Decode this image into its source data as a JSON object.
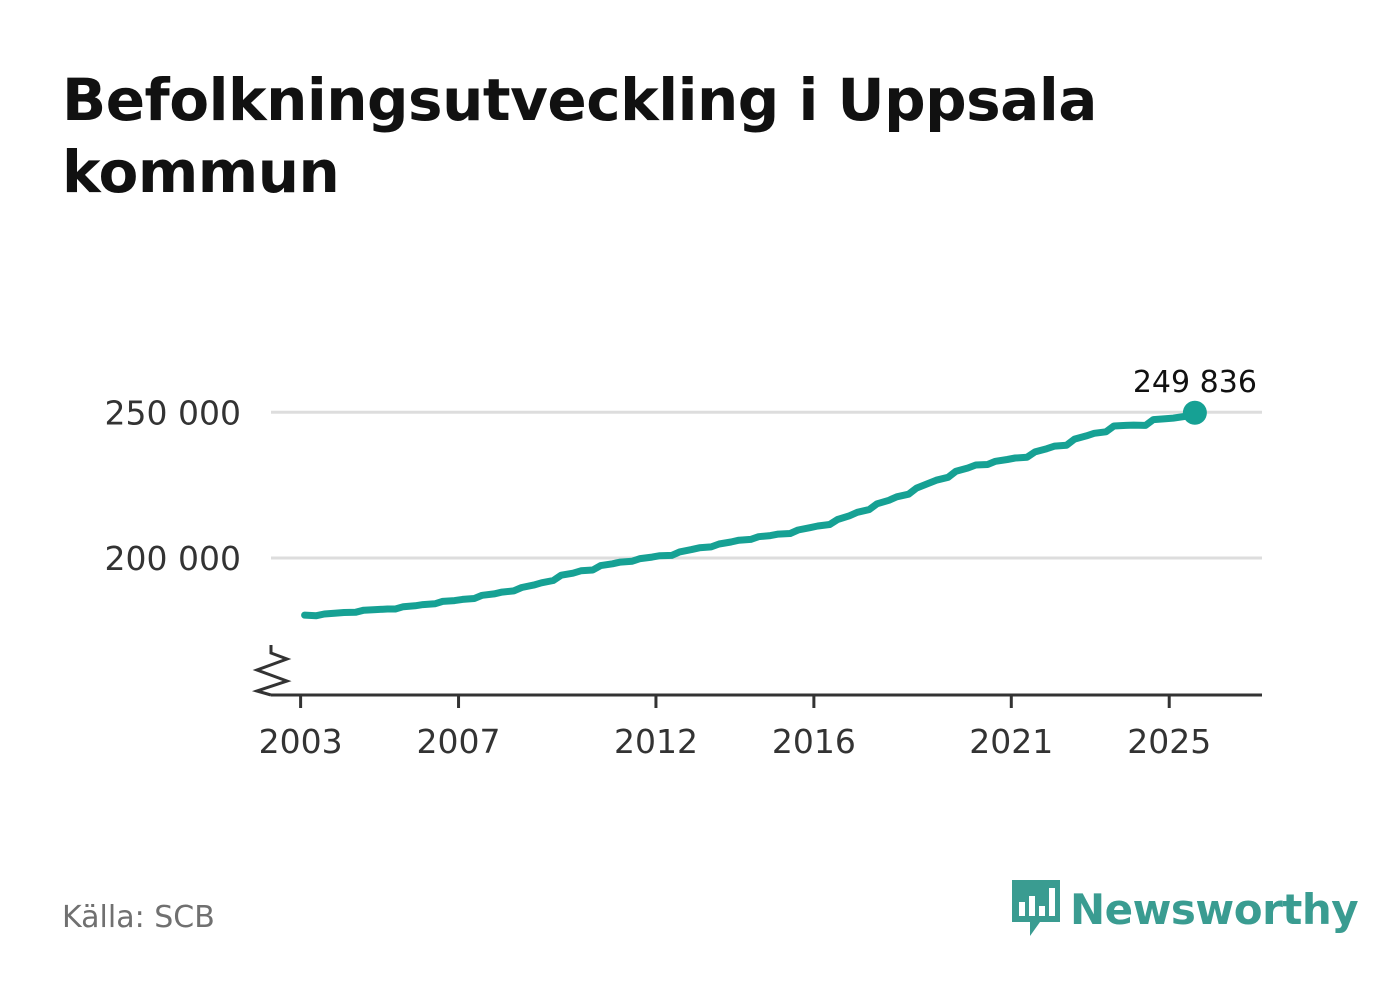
{
  "title": "Befolkningsutveckling i Uppsala kommun",
  "source": "Källa: SCB",
  "brand": {
    "name": "Newsworthy",
    "icon": "bar-chart-speech-bubble-icon",
    "color": "#3a9c91"
  },
  "chart_data": {
    "type": "line",
    "title": "Befolkningsutveckling i Uppsala kommun",
    "xlabel": "",
    "ylabel": "",
    "series_color": "#16a194",
    "grid": true,
    "axis_break": true,
    "xlim": [
      2002.25,
      2027.35
    ],
    "ylim": [
      153000,
      252500
    ],
    "x_ticks": [
      2003,
      2007,
      2012,
      2016,
      2021,
      2025
    ],
    "y_ticks": [
      200000,
      250000
    ],
    "y_tick_labels": [
      "200 000",
      "250 000"
    ],
    "end_label": "249 836",
    "points": [
      [
        2003.1,
        180400
      ],
      [
        2003.4,
        180200
      ],
      [
        2003.6,
        180800
      ],
      [
        2003.9,
        181100
      ],
      [
        2004.1,
        181300
      ],
      [
        2004.4,
        181400
      ],
      [
        2004.6,
        182100
      ],
      [
        2004.9,
        182300
      ],
      [
        2005.2,
        182500
      ],
      [
        2005.4,
        182500
      ],
      [
        2005.6,
        183300
      ],
      [
        2005.9,
        183600
      ],
      [
        2006.1,
        184000
      ],
      [
        2006.4,
        184300
      ],
      [
        2006.6,
        185100
      ],
      [
        2006.9,
        185400
      ],
      [
        2007.1,
        185800
      ],
      [
        2007.4,
        186100
      ],
      [
        2007.6,
        187200
      ],
      [
        2007.9,
        187700
      ],
      [
        2008.1,
        188300
      ],
      [
        2008.4,
        188700
      ],
      [
        2008.6,
        189900
      ],
      [
        2008.9,
        190700
      ],
      [
        2009.1,
        191500
      ],
      [
        2009.4,
        192300
      ],
      [
        2009.6,
        194100
      ],
      [
        2009.9,
        194800
      ],
      [
        2010.1,
        195600
      ],
      [
        2010.4,
        195900
      ],
      [
        2010.6,
        197400
      ],
      [
        2010.9,
        198000
      ],
      [
        2011.1,
        198600
      ],
      [
        2011.4,
        198900
      ],
      [
        2011.6,
        199800
      ],
      [
        2011.9,
        200300
      ],
      [
        2012.1,
        200800
      ],
      [
        2012.4,
        200900
      ],
      [
        2012.6,
        202100
      ],
      [
        2012.9,
        202900
      ],
      [
        2013.1,
        203500
      ],
      [
        2013.4,
        203800
      ],
      [
        2013.6,
        204800
      ],
      [
        2013.9,
        205500
      ],
      [
        2014.1,
        206100
      ],
      [
        2014.4,
        206400
      ],
      [
        2014.6,
        207300
      ],
      [
        2014.9,
        207700
      ],
      [
        2015.1,
        208200
      ],
      [
        2015.4,
        208400
      ],
      [
        2015.6,
        209600
      ],
      [
        2015.9,
        210400
      ],
      [
        2016.1,
        211000
      ],
      [
        2016.4,
        211500
      ],
      [
        2016.6,
        213200
      ],
      [
        2016.9,
        214500
      ],
      [
        2017.1,
        215700
      ],
      [
        2017.4,
        216600
      ],
      [
        2017.6,
        218600
      ],
      [
        2017.9,
        219800
      ],
      [
        2018.1,
        221000
      ],
      [
        2018.4,
        221900
      ],
      [
        2018.6,
        224000
      ],
      [
        2018.9,
        225600
      ],
      [
        2019.1,
        226700
      ],
      [
        2019.4,
        227700
      ],
      [
        2019.6,
        229800
      ],
      [
        2019.9,
        230900
      ],
      [
        2020.1,
        231900
      ],
      [
        2020.4,
        232100
      ],
      [
        2020.6,
        233200
      ],
      [
        2020.9,
        233800
      ],
      [
        2021.1,
        234300
      ],
      [
        2021.4,
        234600
      ],
      [
        2021.6,
        236400
      ],
      [
        2021.9,
        237500
      ],
      [
        2022.1,
        238400
      ],
      [
        2022.4,
        238700
      ],
      [
        2022.6,
        240800
      ],
      [
        2022.9,
        241900
      ],
      [
        2023.1,
        242800
      ],
      [
        2023.4,
        243300
      ],
      [
        2023.6,
        245300
      ],
      [
        2023.9,
        245500
      ],
      [
        2024.1,
        245600
      ],
      [
        2024.4,
        245500
      ],
      [
        2024.6,
        247500
      ],
      [
        2024.9,
        247800
      ],
      [
        2025.1,
        248000
      ],
      [
        2025.4,
        248600
      ],
      [
        2025.65,
        249836
      ]
    ]
  }
}
